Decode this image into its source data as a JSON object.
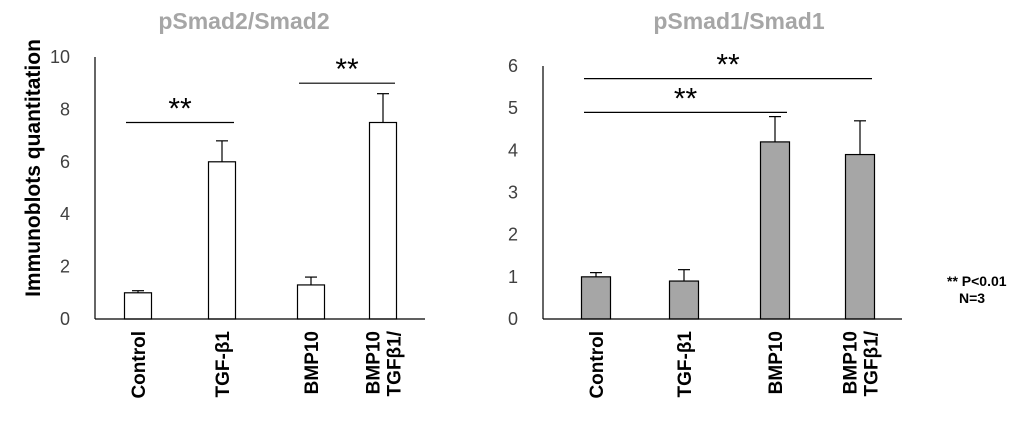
{
  "ylabel": "Immunoblots quantitation",
  "footnote": [
    "** P<0.01",
    "N=3"
  ],
  "colors": {
    "bar_left": "#ffffff",
    "bar_right": "#a6a6a6",
    "stroke": "#000000",
    "title": "#a6a6a6"
  },
  "chart_data": [
    {
      "type": "bar",
      "title": "pSmad2/Smad2",
      "categories": [
        [
          "Control"
        ],
        [
          "TGF-β1"
        ],
        [
          "BMP10"
        ],
        [
          "TGFβ1/",
          "BMP10"
        ]
      ],
      "series": [
        {
          "values": [
            1.0,
            6.0,
            1.3,
            7.5
          ],
          "error": [
            0.08,
            0.8,
            0.3,
            1.1
          ]
        }
      ],
      "ylim": [
        0,
        10
      ],
      "yticks": [
        0,
        2,
        4,
        6,
        8,
        10
      ],
      "xlabel": "",
      "grid": false,
      "significance": [
        {
          "from": 0,
          "to": 1,
          "y": 7.5,
          "label": "**"
        },
        {
          "from": 2,
          "to": 3,
          "y": 9.0,
          "label": "**"
        }
      ]
    },
    {
      "type": "bar",
      "title": "pSmad1/Smad1",
      "categories": [
        [
          "Control"
        ],
        [
          "TGF-β1"
        ],
        [
          "BMP10"
        ],
        [
          "TGFβ1/",
          "BMP10"
        ]
      ],
      "series": [
        {
          "values": [
            1.0,
            0.9,
            4.2,
            3.9
          ],
          "error": [
            0.1,
            0.27,
            0.6,
            0.8
          ]
        }
      ],
      "ylim": [
        0,
        6
      ],
      "yticks": [
        0,
        1,
        2,
        3,
        4,
        5,
        6
      ],
      "xlabel": "",
      "grid": false,
      "significance": [
        {
          "from": 0,
          "to": 2,
          "y": 4.9,
          "label": "**"
        },
        {
          "from": 0,
          "to": 3,
          "y": 5.7,
          "label": "**"
        }
      ]
    }
  ]
}
